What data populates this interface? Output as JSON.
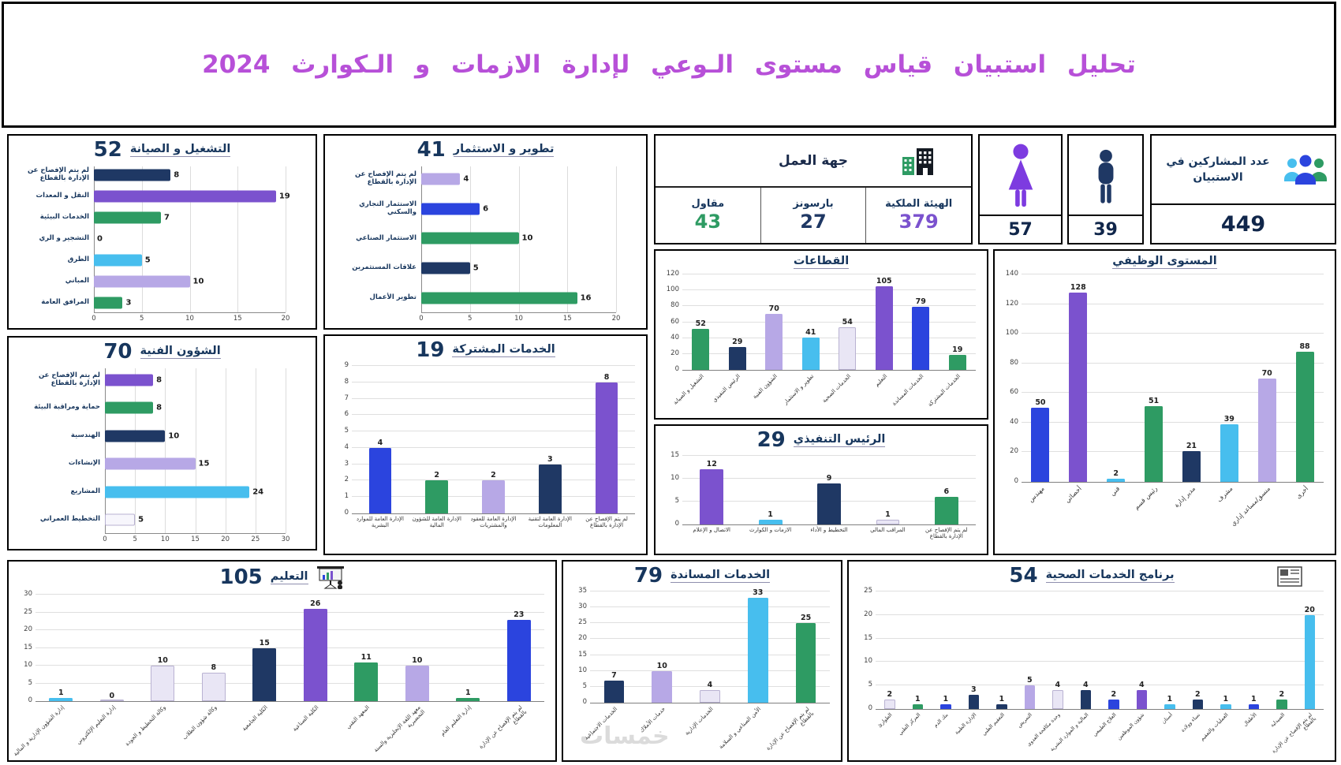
{
  "header": {
    "title": "تحليل استبيان قياس مستوى الـوعي لإدارة الازمات و الـكوارث 2024",
    "title_color": "#B750D8"
  },
  "palette": {
    "navy": "#1F3864",
    "purple": "#7B52CE",
    "green": "#2E9B63",
    "sky": "#47BEEE",
    "royal": "#2B44DE",
    "lavender": "#B7A8E6",
    "pale": "#E9E6F5",
    "white": "#F7F6FC"
  },
  "employer": {
    "title": "جهة العمل",
    "items": [
      {
        "label": "مقاول",
        "value": "43",
        "color": "green"
      },
      {
        "label": "بارسونز",
        "value": "27",
        "color": "navy"
      },
      {
        "label": "الهيئة الملكية",
        "value": "379",
        "color": "purple"
      }
    ]
  },
  "gender": {
    "female": "57",
    "male": "39"
  },
  "participants": {
    "label": "عدد المشاركين في الاستبيان",
    "value": "449"
  },
  "watermark": "خمسات",
  "icons": {
    "employer": "buildings-icon",
    "female": "female-icon",
    "male": "male-icon",
    "participants": "people-group-icon",
    "education": "presentation-icon",
    "health": "newspaper-icon"
  },
  "chart_data": [
    {
      "id": "operations",
      "type": "bar-horizontal",
      "title": "التشغيل و الصيانة",
      "total": 52,
      "categories": [
        "لم يتم الإفصاح عن الإدارة بالقطاع",
        "النقل و المعدات",
        "الخدمات البيئية",
        "التشجير و الري",
        "الطرق",
        "المباني",
        "المرافق العامة"
      ],
      "values": [
        8,
        19,
        7,
        0,
        5,
        10,
        3
      ],
      "colors": [
        "navy",
        "purple",
        "green",
        "green",
        "sky",
        "lavender",
        "green"
      ],
      "xlim": [
        0,
        20
      ],
      "ticks": [
        0,
        5,
        10,
        15,
        20
      ],
      "label_w": 104
    },
    {
      "id": "development",
      "type": "bar-horizontal",
      "title": "تطوير و الاستثمار",
      "total": 41,
      "categories": [
        "لم يتم الإفصاح عن الإدارة بالقطاع",
        "الاستثمار التجاري والسكني",
        "الاستثمار الصناعي",
        "علاقات المستثمرين",
        "تطوير الأعمال"
      ],
      "values": [
        4,
        6,
        10,
        5,
        16
      ],
      "colors": [
        "lavender",
        "royal",
        "green",
        "navy",
        "green"
      ],
      "xlim": [
        0,
        20
      ],
      "ticks": [
        0,
        5,
        10,
        15,
        20
      ],
      "label_w": 118
    },
    {
      "id": "technical",
      "type": "bar-horizontal",
      "title": "الشؤون الفنية",
      "total": 70,
      "categories": [
        "لم يتم الإفصاح عن الإدارة بالقطاع",
        "حماية ومراقبة البيئة",
        "الهندسية",
        "الإنشاءات",
        "المشاريع",
        "التخطيط العمراني"
      ],
      "values": [
        8,
        8,
        10,
        15,
        24,
        5
      ],
      "colors": [
        "purple",
        "green",
        "navy",
        "lavender",
        "sky",
        "white"
      ],
      "xlim": [
        0,
        30
      ],
      "ticks": [
        0,
        5,
        10,
        15,
        20,
        25,
        30
      ],
      "label_w": 118
    },
    {
      "id": "shared",
      "type": "bar",
      "title": "الخدمات المشتركة",
      "total": 19,
      "categories": [
        "الإدارة العامة للموارد البشرية",
        "الإدارة العامة للشؤون المالية",
        "الإدارة العامة للعقود والمشتريات",
        "الإدارة العامة لتقنية المعلومات",
        "لم يتم الإفصاح عن الإدارة بالقطاع"
      ],
      "values": [
        4,
        2,
        2,
        3,
        8
      ],
      "colors": [
        "royal",
        "green",
        "lavender",
        "navy",
        "purple"
      ],
      "ylim": [
        0,
        9
      ],
      "ticks": [
        0,
        1,
        2,
        3,
        4,
        5,
        6,
        7,
        8,
        9
      ],
      "label_mode": "wrap",
      "label_h": 48,
      "cat_font": 7,
      "bar_pad": 30
    },
    {
      "id": "ceo",
      "type": "bar",
      "title": "الرئيس التنفيذي",
      "total": 29,
      "categories": [
        "الاتصال و الإعلام",
        "الازمات و الكوارث",
        "التخطيط و الأداء",
        "المراقب المالي",
        "لم يتم الإفصاح عن الإدارة بالقطاع"
      ],
      "values": [
        12,
        1,
        9,
        1,
        6
      ],
      "colors": [
        "purple",
        "sky",
        "navy",
        "pale",
        "green"
      ],
      "ylim": [
        0,
        15
      ],
      "ticks": [
        0,
        5,
        10,
        15
      ],
      "label_mode": "wrap",
      "label_h": 34,
      "cat_font": 7,
      "bar_pad": 30
    },
    {
      "id": "sectors",
      "type": "bar",
      "title": "القطاعات",
      "categories": [
        "التشغيل و الصيانة",
        "الرئيس التنفيذي",
        "الشؤون الفنية",
        "تطوير و الاستثمار",
        "الخدمات الصحية",
        "التعليم",
        "الخدمات المساندة",
        "الخدمات المشتركة"
      ],
      "values": [
        52,
        29,
        70,
        41,
        54,
        105,
        79,
        19
      ],
      "colors": [
        "green",
        "navy",
        "lavender",
        "sky",
        "pale",
        "purple",
        "royal",
        "green"
      ],
      "ylim": [
        0,
        120
      ],
      "ticks": [
        0,
        20,
        40,
        60,
        80,
        100,
        120
      ],
      "label_mode": "rotated",
      "label_h": 58,
      "cat_font": 7,
      "label_maxw": 80,
      "bar_pad": 26
    },
    {
      "id": "job_level",
      "type": "bar",
      "title": "المستوى الوظيفي",
      "categories": [
        "مهندس",
        "أخصائي",
        "فني",
        "رئيس قسم",
        "مدير إدارة",
        "مشرف",
        "منسق/مساعد إداري",
        "أخرى"
      ],
      "values": [
        50,
        128,
        2,
        51,
        21,
        39,
        70,
        88
      ],
      "colors": [
        "royal",
        "purple",
        "sky",
        "green",
        "navy",
        "sky",
        "lavender",
        "green"
      ],
      "ylim": [
        0,
        140
      ],
      "ticks": [
        0,
        20,
        40,
        60,
        80,
        100,
        120,
        140
      ],
      "label_mode": "rotated",
      "label_h": 88,
      "cat_font": 8,
      "label_maxw": 112,
      "bar_pad": 26
    },
    {
      "id": "education",
      "type": "bar",
      "title": "التعليم",
      "total": 105,
      "categories": [
        "إدارة الشؤون الإدارية و المالية",
        "إدارة التعليم الإلكتروني",
        "وكالة التخطيط و الجودة",
        "وكالة شؤون الطلاب",
        "الكلية الجامعية",
        "الكلية الصناعية",
        "المعهد التقني",
        "معهد اللغة الإنجليزية والسنة التحضيرية",
        "إدارة التعليم العام",
        "لم يتم الإفصاح عن الإدارة بالقطاع"
      ],
      "values": [
        1,
        0,
        10,
        8,
        15,
        26,
        11,
        10,
        1,
        23
      ],
      "colors": [
        "sky",
        "pale",
        "pale",
        "pale",
        "navy",
        "purple",
        "green",
        "lavender",
        "green",
        "royal"
      ],
      "ylim": [
        0,
        30
      ],
      "ticks": [
        0,
        5,
        10,
        15,
        20,
        25,
        30
      ],
      "label_mode": "rotated",
      "label_h": 72,
      "cat_font": 7,
      "label_maxw": 95,
      "bar_pad": 27
    },
    {
      "id": "support",
      "type": "bar",
      "title": "الخدمات المساندة",
      "total": 79,
      "categories": [
        "الخدمات الاجتماعية",
        "خدمات الأملاك",
        "الخدمات الإدارية",
        "الأمن الصناعي و السلامة",
        "لم يتم الإفصاح عن الإدارة بالقطاع"
      ],
      "values": [
        7,
        10,
        4,
        33,
        25
      ],
      "colors": [
        "navy",
        "lavender",
        "pale",
        "sky",
        "green"
      ],
      "ylim": [
        0,
        35
      ],
      "ticks": [
        0,
        5,
        10,
        15,
        20,
        25,
        30,
        35
      ],
      "label_mode": "rotated",
      "label_h": 70,
      "cat_font": 7,
      "label_maxw": 95,
      "bar_pad": 29
    },
    {
      "id": "health",
      "type": "bar",
      "title": "برنامج الخدمات الصحية",
      "total": 54,
      "categories": [
        "الطوارئ",
        "المركز الطبي",
        "بنك الدم",
        "الإدارة الطبية",
        "التعقيم الطبي",
        "التمريض",
        "وحدة مكافحة العدوى",
        "المالية و الموارد البشرية",
        "العلاج الطبيعي",
        "شؤون الموظفين",
        "أسنان",
        "نساء وولادة",
        "العمليات والتعقيم",
        "الأطفال",
        "الصيدلية",
        "لم يتم الإفصاح عن الإدارة بالقطاع"
      ],
      "values": [
        2,
        1,
        1,
        3,
        1,
        5,
        4,
        4,
        2,
        4,
        1,
        2,
        1,
        1,
        2,
        20
      ],
      "colors": [
        "pale",
        "green",
        "royal",
        "navy",
        "navy",
        "lavender",
        "pale",
        "navy",
        "royal",
        "purple",
        "sky",
        "navy",
        "sky",
        "royal",
        "green",
        "sky"
      ],
      "ylim": [
        0,
        25
      ],
      "ticks": [
        0,
        5,
        10,
        15,
        20,
        25
      ],
      "label_mode": "rotated",
      "label_h": 62,
      "cat_font": 6.5,
      "label_maxw": 82,
      "bar_pad": 31
    }
  ]
}
